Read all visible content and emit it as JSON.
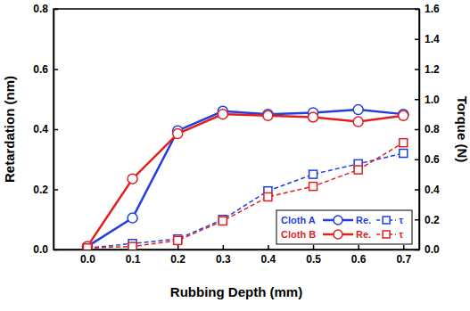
{
  "chart_data": {
    "type": "line",
    "x_label": "Rubbing Depth (mm)",
    "y_label": "Retardation (nm)",
    "y2_label": "Torque (N)",
    "x": [
      0.0,
      0.1,
      0.2,
      0.3,
      0.4,
      0.5,
      0.6,
      0.7
    ],
    "xlim": [
      -0.075,
      0.735
    ],
    "xticks": [
      {
        "value": 0,
        "label": "0.0"
      },
      0.1,
      0.2,
      0.3,
      0.4,
      0.5,
      0.6,
      0.7
    ],
    "ylim": [
      0,
      0.8
    ],
    "yticks": [
      {
        "value": 0,
        "label": "0.0"
      },
      0.2,
      0.4,
      0.6,
      0.8
    ],
    "y2lim": [
      0,
      1.6
    ],
    "y2ticks": [
      {
        "value": 0,
        "label": "0.0"
      },
      0.2,
      0.4,
      0.6,
      0.8,
      {
        "value": 1,
        "label": "1.0"
      },
      1.2,
      1.4,
      1.6
    ],
    "grid": false,
    "legend": "lower right",
    "series": [
      {
        "name": "Re.",
        "group": "Cloth A",
        "color": "#1f3fe0",
        "marker": "circle",
        "line_style": "solid",
        "values": [
          0.01,
          0.105,
          0.395,
          0.46,
          0.45,
          0.455,
          0.465,
          0.45
        ]
      },
      {
        "name": "τ",
        "group": "Cloth A",
        "color": "#1f3fe0",
        "marker": "square",
        "line_style": "dashed",
        "axis": "y2",
        "values": [
          0.01,
          0.04,
          0.07,
          0.2,
          0.39,
          0.5,
          0.57,
          0.64
        ]
      },
      {
        "name": "Re.",
        "group": "Cloth B",
        "color": "#e01f1f",
        "marker": "circle",
        "line_style": "solid",
        "values": [
          0.01,
          0.235,
          0.385,
          0.45,
          0.445,
          0.44,
          0.425,
          0.445
        ]
      },
      {
        "name": "τ",
        "group": "Cloth B",
        "color": "#e01f1f",
        "marker": "square",
        "line_style": "dashed",
        "axis": "y2",
        "values": [
          0.01,
          0.02,
          0.06,
          0.19,
          0.35,
          0.42,
          0.53,
          0.71
        ]
      }
    ]
  }
}
